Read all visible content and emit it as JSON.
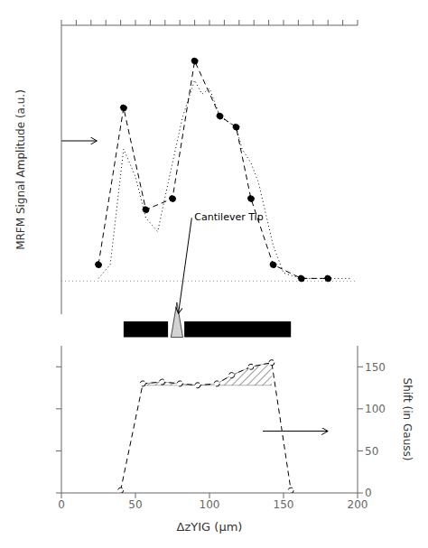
{
  "chart_data": [
    {
      "type": "line",
      "ylabel": "MRFM Signal Amplitude (a.u.)",
      "xlim": [
        0,
        200
      ],
      "xticks": [
        0,
        10,
        20,
        30,
        40,
        50,
        60,
        70,
        80,
        90,
        100,
        110,
        120,
        130,
        140,
        150,
        160,
        170,
        180,
        190,
        200
      ],
      "ylim": [
        0.0,
        1.05
      ],
      "yticks": [],
      "tick_labels": false,
      "grid": false,
      "series": [
        {
          "type": "line",
          "line_style": "dotted",
          "marker": "none",
          "color": "black",
          "x": [
            25,
            33,
            42,
            50,
            57,
            65,
            75,
            82,
            90,
            95,
            100,
            107,
            112,
            118,
            122,
            128,
            133,
            143,
            150,
            162,
            172,
            180,
            195
          ],
          "values": [
            0.13,
            0.18,
            0.6,
            0.5,
            0.35,
            0.3,
            0.55,
            0.72,
            0.85,
            0.8,
            0.82,
            0.72,
            0.7,
            0.68,
            0.6,
            0.55,
            0.48,
            0.25,
            0.15,
            0.13,
            0.13,
            0.13,
            0.13
          ]
        },
        {
          "type": "line",
          "line_style": "dashed",
          "marker": "filled_circle",
          "color": "black",
          "x": [
            25,
            42,
            57,
            75,
            90,
            107,
            118,
            128,
            143,
            162,
            180
          ],
          "values": [
            0.18,
            0.75,
            0.38,
            0.42,
            0.92,
            0.72,
            0.68,
            0.42,
            0.18,
            0.13,
            0.13
          ]
        }
      ],
      "hlines": [
        {
          "y": 0.12,
          "color": "gray",
          "line_style": "dotted"
        }
      ],
      "bars": [
        {
          "x": 42,
          "width": 30,
          "color": "black"
        },
        {
          "x": 83,
          "width": 72,
          "color": "black"
        }
      ],
      "tip": {
        "x_left": 74,
        "x_tip": 78,
        "x_right": 82,
        "color": "lightgray"
      },
      "annotations": [
        {
          "text": "Cantilever Tip",
          "x": 88,
          "y": 0.35,
          "arrow_x": 79
        }
      ]
    },
    {
      "type": "line",
      "xlabel": "ΔzYIG (μm)",
      "ylabel": "Shift (in Gauss)",
      "xlim": [
        0,
        200
      ],
      "xticks": [
        0,
        50,
        100,
        150,
        200
      ],
      "ylim": [
        0,
        175
      ],
      "yticks": [
        0,
        50,
        100,
        150
      ],
      "grid": false,
      "series": [
        {
          "type": "line",
          "line_style": "dashed",
          "marker": "open_circle",
          "color": "black",
          "x": [
            40,
            55,
            68,
            80,
            92,
            105,
            115,
            128,
            142,
            155
          ],
          "values": [
            3,
            130,
            132,
            130,
            128,
            130,
            140,
            150,
            155,
            3
          ]
        }
      ],
      "fill_baseline": 128
    }
  ]
}
